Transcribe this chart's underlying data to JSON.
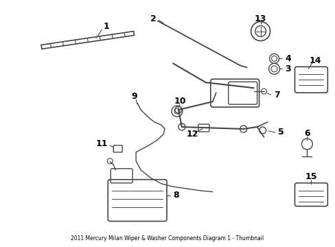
{
  "title": "2011 Mercury Milan Wiper & Washer Components Diagram 1 - Thumbnail",
  "bg_color": "#ffffff",
  "line_color": "#444444",
  "text_color": "#000000",
  "fig_width": 4.89,
  "fig_height": 3.6,
  "dpi": 100
}
